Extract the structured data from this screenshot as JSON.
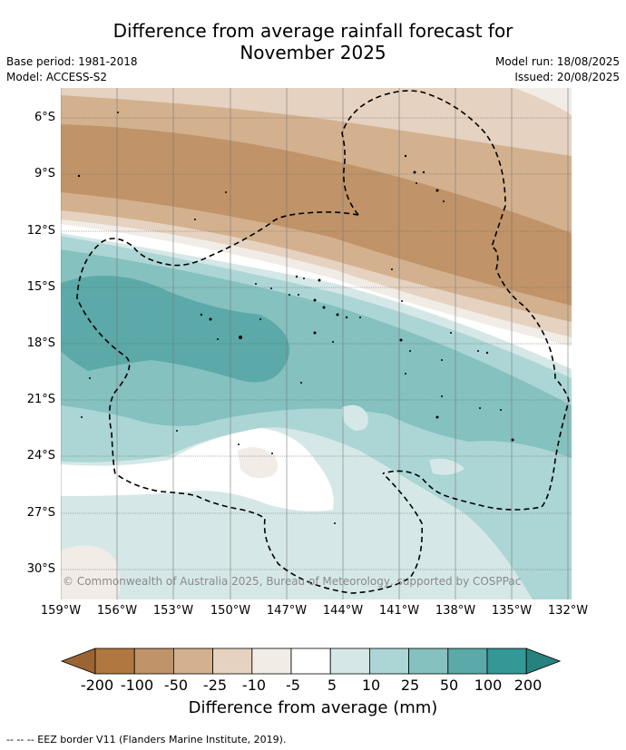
{
  "title_line1": "Difference from average rainfall forecast for",
  "title_line2": "November 2025",
  "base_period": "Base period: 1981-2018",
  "model": "Model: ACCESS-S2",
  "model_run": "Model run: 18/08/2025",
  "issued": "Issued: 20/08/2025",
  "lat_labels": [
    "6°S",
    "9°S",
    "12°S",
    "15°S",
    "18°S",
    "21°S",
    "24°S",
    "27°S",
    "30°S"
  ],
  "lon_labels": [
    "159°W",
    "156°W",
    "153°W",
    "150°W",
    "147°W",
    "144°W",
    "141°W",
    "138°W",
    "135°W",
    "132°W"
  ],
  "colorbar": {
    "title": "Difference from average (mm)",
    "labels": [
      "-200",
      "-100",
      "-50",
      "-25",
      "-10",
      "-5",
      "5",
      "10",
      "25",
      "50",
      "100",
      "200"
    ],
    "colors": [
      "#9c6432",
      "#b07840",
      "#c09368",
      "#d3b18f",
      "#e5d2c0",
      "#f1ece6",
      "#ffffff",
      "#d5e8e7",
      "#abd6d5",
      "#84c1bf",
      "#5ba9a8",
      "#339896",
      "#27827f"
    ]
  },
  "copyright": "© Commonwealth of Australia 2025, Bureau of Meteorology, supported by COSPPac",
  "legend": "-- -- -- EEZ border V11 (Flanders Marine Institute, 2019)."
}
